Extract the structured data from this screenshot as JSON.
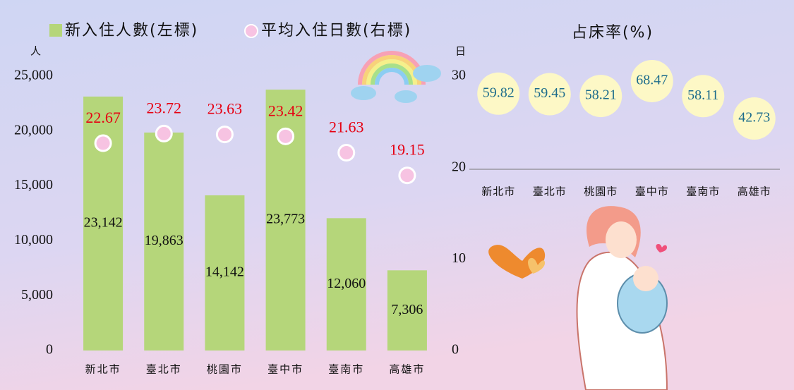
{
  "chart_data": [
    {
      "type": "bar",
      "categories": [
        "新北市",
        "臺北市",
        "桃園市",
        "臺中市",
        "臺南市",
        "高雄市"
      ],
      "ylabel": "人",
      "y2label": "日",
      "series": [
        {
          "name": "新入住人數(左標)",
          "color": "#b5d67a",
          "values": [
            23142,
            19863,
            14142,
            23773,
            12060,
            7306
          ],
          "value_labels": [
            "23,142",
            "19,863",
            "14,142",
            "23,773",
            "12,060",
            "7,306"
          ]
        },
        {
          "name": "平均入住日數(右標)",
          "color": "#f7c3e2",
          "axis": "y2",
          "label_color": "#e60012",
          "values": [
            22.67,
            23.72,
            23.63,
            23.42,
            21.63,
            19.15
          ]
        }
      ],
      "ylim": [
        0,
        25000
      ],
      "yticks": [
        0,
        {
          "value": 5000,
          "label": "5,000"
        },
        {
          "value": 10000,
          "label": "10,000"
        },
        {
          "value": 15000,
          "label": "15,000"
        },
        {
          "value": 20000,
          "label": "20,000"
        },
        {
          "value": 25000,
          "label": "25,000"
        }
      ],
      "y2lim": [
        0,
        30
      ],
      "y2ticks": [
        0,
        10,
        20,
        30
      ]
    },
    {
      "type": "bubble",
      "title": "占床率(%)",
      "categories": [
        "新北市",
        "臺北市",
        "桃園市",
        "臺中市",
        "臺南市",
        "高雄市"
      ],
      "values": [
        59.82,
        59.45,
        58.21,
        68.47,
        58.11,
        42.73
      ],
      "color": "#fdf8c6",
      "label_color": "#1d6c8c",
      "ylim": [
        0,
        100
      ]
    }
  ]
}
